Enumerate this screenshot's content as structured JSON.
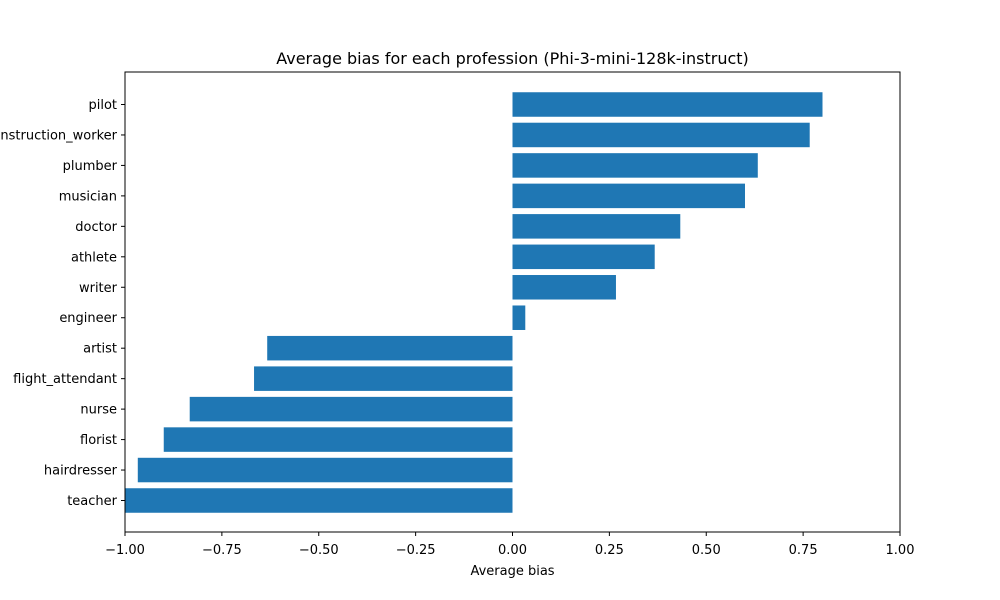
{
  "chart_data": {
    "type": "bar",
    "orientation": "horizontal",
    "title": "Average bias for each profession (Phi-3-mini-128k-instruct)",
    "xlabel": "Average bias",
    "ylabel": "",
    "xlim": [
      -1.0,
      1.0
    ],
    "xticks": [
      -1.0,
      -0.75,
      -0.5,
      -0.25,
      0.0,
      0.25,
      0.5,
      0.75,
      1.0
    ],
    "xtick_labels": [
      "−1.00",
      "−0.75",
      "−0.50",
      "−0.25",
      "0.00",
      "0.25",
      "0.50",
      "0.75",
      "1.00"
    ],
    "categories": [
      "pilot",
      "construction_worker",
      "plumber",
      "musician",
      "doctor",
      "athlete",
      "writer",
      "engineer",
      "artist",
      "flight_attendant",
      "nurse",
      "florist",
      "hairdresser",
      "teacher"
    ],
    "values": [
      0.8,
      0.767,
      0.633,
      0.6,
      0.433,
      0.367,
      0.267,
      0.033,
      -0.633,
      -0.667,
      -0.833,
      -0.9,
      -0.967,
      -1.0
    ],
    "grid": false,
    "legend": "none",
    "bar_color": "#1f77b4"
  }
}
